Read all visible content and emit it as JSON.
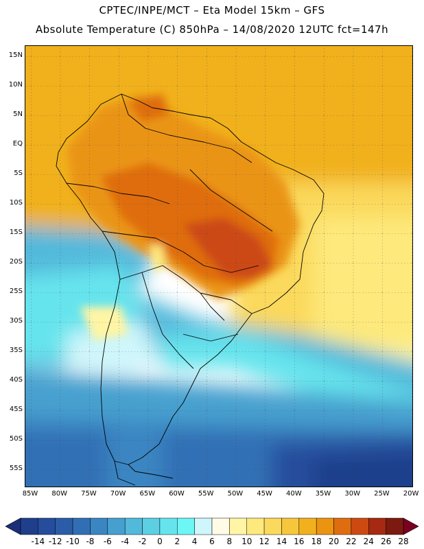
{
  "header": {
    "line1": "CPTEC/INPE/MCT –  Eta Model 15km – GFS",
    "line2": "Absolute Temperature (C) 850hPa – 14/08/2020 12UTC fct=147h"
  },
  "map": {
    "lat_labels": [
      "15N",
      "10N",
      "5N",
      "EQ",
      "5S",
      "10S",
      "15S",
      "20S",
      "25S",
      "30S",
      "35S",
      "40S",
      "45S",
      "50S",
      "55S"
    ],
    "lon_labels": [
      "85W",
      "80W",
      "75W",
      "70W",
      "65W",
      "60W",
      "55W",
      "50W",
      "45W",
      "40W",
      "35W",
      "30W",
      "25W",
      "20W"
    ]
  },
  "colorbar": {
    "labels": [
      "-14",
      "-12",
      "-10",
      "-8",
      "-6",
      "-4",
      "-2",
      "0",
      "2",
      "4",
      "6",
      "8",
      "10",
      "12",
      "14",
      "16",
      "18",
      "20",
      "22",
      "24",
      "26",
      "28"
    ],
    "colors": [
      "#1f3f8c",
      "#254d9c",
      "#2b5ca8",
      "#316fb5",
      "#3a86c2",
      "#46a0cf",
      "#52b9db",
      "#5ccfe3",
      "#66e4ed",
      "#6cf6f6",
      "#cff6fb",
      "#fffbe6",
      "#fff5a5",
      "#fde97c",
      "#fbd95c",
      "#f6c63d",
      "#f1b11e",
      "#ea9412",
      "#df6d10",
      "#cc4a12",
      "#a62a12",
      "#7d1a10"
    ],
    "low_arrow_color": "#1a2f78",
    "high_arrow_color": "#7a0022"
  }
}
